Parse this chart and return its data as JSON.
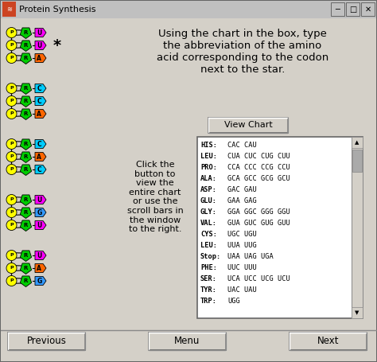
{
  "title": "Protein Synthesis",
  "bg_color": "#d4d0c8",
  "main_text": "Using the chart in the box, type\nthe abbreviation of the amino\nacid corresponding to the codon\nnext to the star.",
  "side_text": "Click the\nbutton to\nview the\nentire chart\nor use the\nscroll bars in\nthe window\nto the right.",
  "view_chart_btn": "View Chart",
  "codon_table": [
    [
      "HIS:",
      "CAC CAU"
    ],
    [
      "LEU:",
      "CUA CUC CUG CUU"
    ],
    [
      "PRO:",
      "CCA CCC CCG CCU"
    ],
    [
      "ALA:",
      "GCA GCC GCG GCU"
    ],
    [
      "ASP:",
      "GAC GAU"
    ],
    [
      "GLU:",
      "GAA GAG"
    ],
    [
      "GLY:",
      "GGA GGC GGG GGU"
    ],
    [
      "VAL:",
      "GUA GUC GUG GUU"
    ],
    [
      "CYS:",
      "UGC UGU"
    ],
    [
      "LEU:",
      "UUA UUG"
    ],
    [
      "Stop:",
      "UAA UAG UGA"
    ],
    [
      "PHE:",
      "UUC UUU"
    ],
    [
      "SER:",
      "UCA UCC UCG UCU"
    ],
    [
      "TYR:",
      "UAC UAU"
    ],
    [
      "TRP:",
      "UGG"
    ]
  ],
  "buttons": [
    "Previous",
    "Menu",
    "Next"
  ],
  "dna_groups": [
    {
      "nucleotides": [
        {
          "letter": "U",
          "color": "#ff00ff"
        },
        {
          "letter": "U",
          "color": "#ff00ff"
        },
        {
          "letter": "A",
          "color": "#ff6600"
        }
      ],
      "star": true
    },
    {
      "nucleotides": [
        {
          "letter": "C",
          "color": "#00ccff"
        },
        {
          "letter": "C",
          "color": "#00ccff"
        },
        {
          "letter": "A",
          "color": "#ff6600"
        }
      ],
      "star": false
    },
    {
      "nucleotides": [
        {
          "letter": "C",
          "color": "#00ccff"
        },
        {
          "letter": "A",
          "color": "#ff6600"
        },
        {
          "letter": "C",
          "color": "#00ccff"
        }
      ],
      "star": false
    },
    {
      "nucleotides": [
        {
          "letter": "U",
          "color": "#ff00ff"
        },
        {
          "letter": "G",
          "color": "#3399ff"
        },
        {
          "letter": "U",
          "color": "#ff00ff"
        }
      ],
      "star": false
    },
    {
      "nucleotides": [
        {
          "letter": "U",
          "color": "#ff00ff"
        },
        {
          "letter": "A",
          "color": "#ff6600"
        },
        {
          "letter": "G",
          "color": "#3399ff"
        }
      ],
      "star": false
    }
  ],
  "titlebar_color": "#c0c0c0",
  "titlebar_text_color": "#000000",
  "window_border_color": "#888888",
  "phosphate_color": "#ffff00",
  "ribose_color": "#00cc00"
}
